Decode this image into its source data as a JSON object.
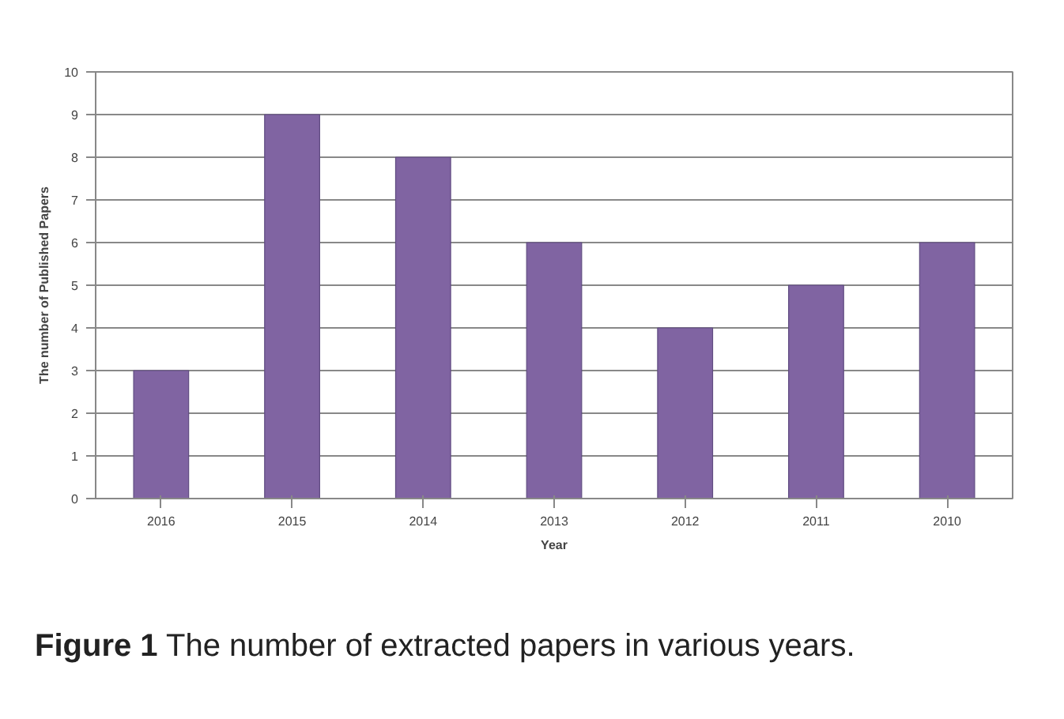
{
  "chart_data": {
    "type": "bar",
    "xlabel": "Year",
    "ylabel": "The number of Published Papers",
    "categories": [
      "2016",
      "2015",
      "2014",
      "2013",
      "2012",
      "2011",
      "2010"
    ],
    "values": [
      3,
      9,
      8,
      6,
      4,
      5,
      6
    ],
    "color": "#8064a2",
    "ylim": [
      0,
      10
    ],
    "yticks": [
      0,
      1,
      2,
      3,
      4,
      5,
      6,
      7,
      8,
      9,
      10
    ],
    "grid": "y",
    "annotations": [
      "Figure 1 The number of extracted papers in various years."
    ]
  }
}
